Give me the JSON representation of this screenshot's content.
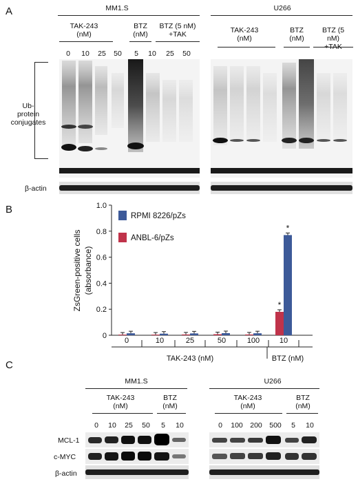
{
  "panel_a": {
    "letter": "A",
    "groups": [
      {
        "title": "MM1.S",
        "sub": [
          {
            "label": "TAK-243\n(nM)",
            "lanes": [
              "0",
              "10",
              "25",
              "50"
            ]
          },
          {
            "label": "BTZ\n(nM)",
            "lanes": [
              "5"
            ]
          },
          {
            "label": "BTZ (5 nM)\n+TAK",
            "lanes": [
              "10",
              "25",
              "50"
            ]
          }
        ]
      },
      {
        "title": "U266",
        "sub": [
          {
            "label": "TAK-243\n(nM)",
            "lanes": []
          },
          {
            "label": "BTZ\n(nM)",
            "lanes": []
          },
          {
            "label": "BTZ (5 nM)\n+TAK",
            "lanes": []
          }
        ]
      }
    ],
    "ub_label": "Ub-\nprotein\nconjugates",
    "actin_label": "β-actin"
  },
  "panel_b": {
    "letter": "B",
    "chart_data": {
      "type": "bar",
      "ylabel": "ZsGreen-positive cells\n(absorbance)",
      "ylim": [
        0,
        1.0
      ],
      "yticks": [
        "0",
        "0.2",
        "0.4",
        "0.6",
        "0.8",
        "1.0"
      ],
      "categories": [
        "0",
        "10",
        "25",
        "50",
        "100",
        "10"
      ],
      "group_labels": [
        {
          "label": "TAK-243 (nM)"
        },
        {
          "label": "BTZ (nM)"
        }
      ],
      "series": [
        {
          "name": "ANBL-6/pZs",
          "color": "#c0334a",
          "values": [
            0.005,
            0.005,
            0.006,
            0.008,
            0.006,
            0.18
          ]
        },
        {
          "name": "RPMI 8226/pZs",
          "color": "#3d5a99",
          "values": [
            0.015,
            0.012,
            0.014,
            0.016,
            0.015,
            0.77
          ]
        }
      ],
      "annotations": [
        "*",
        "*"
      ],
      "legend_placement": "top-left"
    }
  },
  "panel_c": {
    "letter": "C",
    "left": {
      "title": "MM1.S",
      "sub": [
        {
          "label": "TAK-243\n(nM)",
          "lanes": [
            "0",
            "10",
            "25",
            "50"
          ]
        },
        {
          "label": "BTZ\n(nM)",
          "lanes": [
            "5",
            "10"
          ]
        }
      ]
    },
    "right": {
      "title": "U266",
      "sub": [
        {
          "label": "TAK-243\n(nM)",
          "lanes": [
            "0",
            "100",
            "200",
            "500"
          ]
        },
        {
          "label": "BTZ\n(nM)",
          "lanes": [
            "5",
            "10"
          ]
        }
      ]
    },
    "row_labels": [
      "MCL-1",
      "c-MYC",
      "β-actin"
    ]
  }
}
